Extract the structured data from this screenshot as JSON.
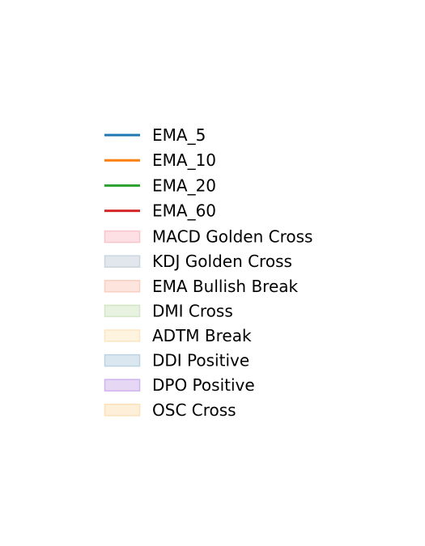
{
  "chart_data": {
    "type": "legend",
    "legend": {
      "entries": [
        {
          "label": "EMA_5",
          "kind": "line",
          "color": "#1f77b4"
        },
        {
          "label": "EMA_10",
          "kind": "line",
          "color": "#ff7f0e"
        },
        {
          "label": "EMA_20",
          "kind": "line",
          "color": "#2ca02c"
        },
        {
          "label": "EMA_60",
          "kind": "line",
          "color": "#d62728"
        },
        {
          "label": "MACD Golden Cross",
          "kind": "patch",
          "fill": "#fde0e3",
          "edge": "#f9c5cb"
        },
        {
          "label": "KDJ Golden Cross",
          "kind": "patch",
          "fill": "#e1e7ec",
          "edge": "#c9d5df"
        },
        {
          "label": "EMA Bullish Break",
          "kind": "patch",
          "fill": "#fde5de",
          "edge": "#f9cfc2"
        },
        {
          "label": "DMI Cross",
          "kind": "patch",
          "fill": "#e8f2e0",
          "edge": "#d3e6c6"
        },
        {
          "label": "ADTM Break",
          "kind": "patch",
          "fill": "#fef3df",
          "edge": "#fbe5c2"
        },
        {
          "label": "DDI Positive",
          "kind": "patch",
          "fill": "#dbe7f0",
          "edge": "#bdd3e3"
        },
        {
          "label": "DPO Positive",
          "kind": "patch",
          "fill": "#e6d8f5",
          "edge": "#cfb3ee"
        },
        {
          "label": "OSC Cross",
          "kind": "patch",
          "fill": "#feefd8",
          "edge": "#fde0b8"
        }
      ]
    }
  }
}
